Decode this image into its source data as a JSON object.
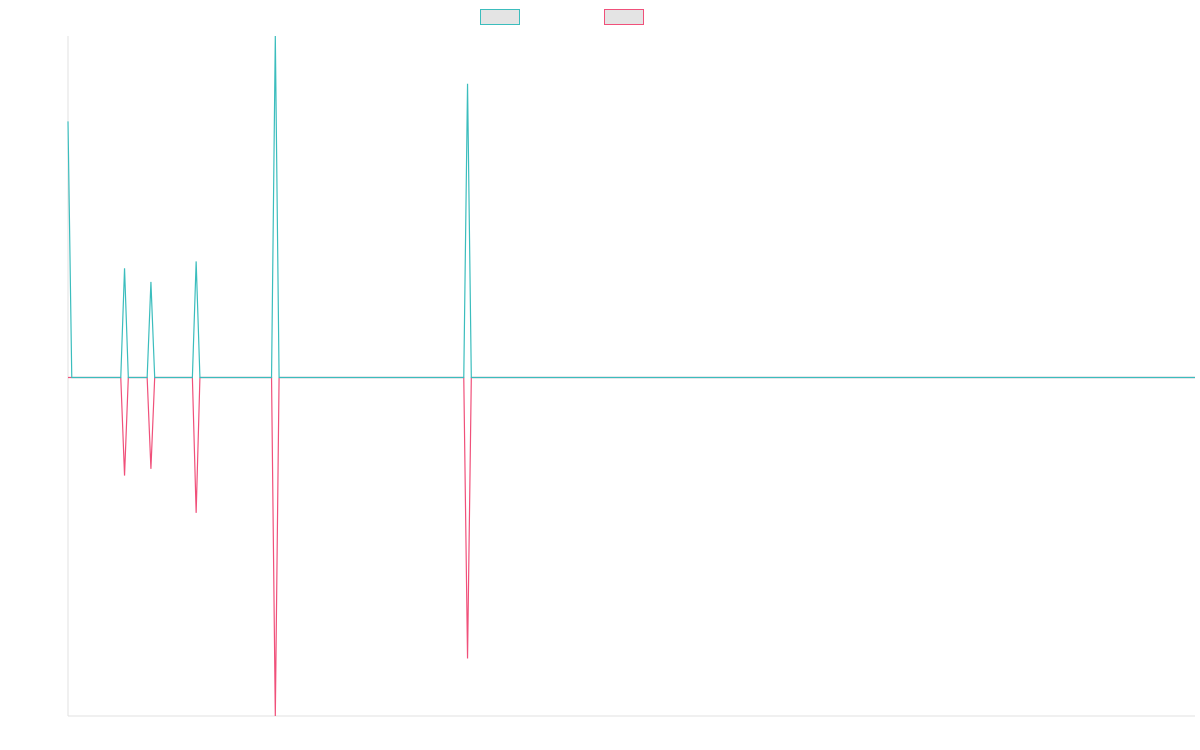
{
  "chart_data": {
    "type": "line",
    "title": "",
    "xlabel": "",
    "ylabel": "",
    "ylim": [
      -1,
      1
    ],
    "x_count": 300,
    "grid": false,
    "legend_position": "top-center",
    "series": [
      {
        "color": "#3bbdbd",
        "points": [
          [
            0,
            0.75
          ],
          [
            1,
            0
          ],
          [
            14,
            0
          ],
          [
            15,
            0.32
          ],
          [
            16,
            0
          ],
          [
            21,
            0
          ],
          [
            22,
            0.28
          ],
          [
            23,
            0
          ],
          [
            33,
            0
          ],
          [
            34,
            0.34
          ],
          [
            35,
            0
          ],
          [
            54,
            0
          ],
          [
            55,
            1.0
          ],
          [
            56,
            0
          ],
          [
            105,
            0
          ],
          [
            106,
            0.86
          ],
          [
            107,
            0
          ],
          [
            299,
            0
          ]
        ]
      },
      {
        "color": "#f0507a",
        "points": [
          [
            0,
            0
          ],
          [
            1,
            0
          ],
          [
            14,
            0
          ],
          [
            15,
            -0.29
          ],
          [
            16,
            0
          ],
          [
            21,
            0
          ],
          [
            22,
            -0.27
          ],
          [
            23,
            0
          ],
          [
            33,
            0
          ],
          [
            34,
            -0.4
          ],
          [
            35,
            0
          ],
          [
            54,
            0
          ],
          [
            55,
            -1.0
          ],
          [
            56,
            0
          ],
          [
            105,
            0
          ],
          [
            106,
            -0.83
          ],
          [
            107,
            0
          ],
          [
            299,
            0
          ]
        ]
      }
    ]
  }
}
